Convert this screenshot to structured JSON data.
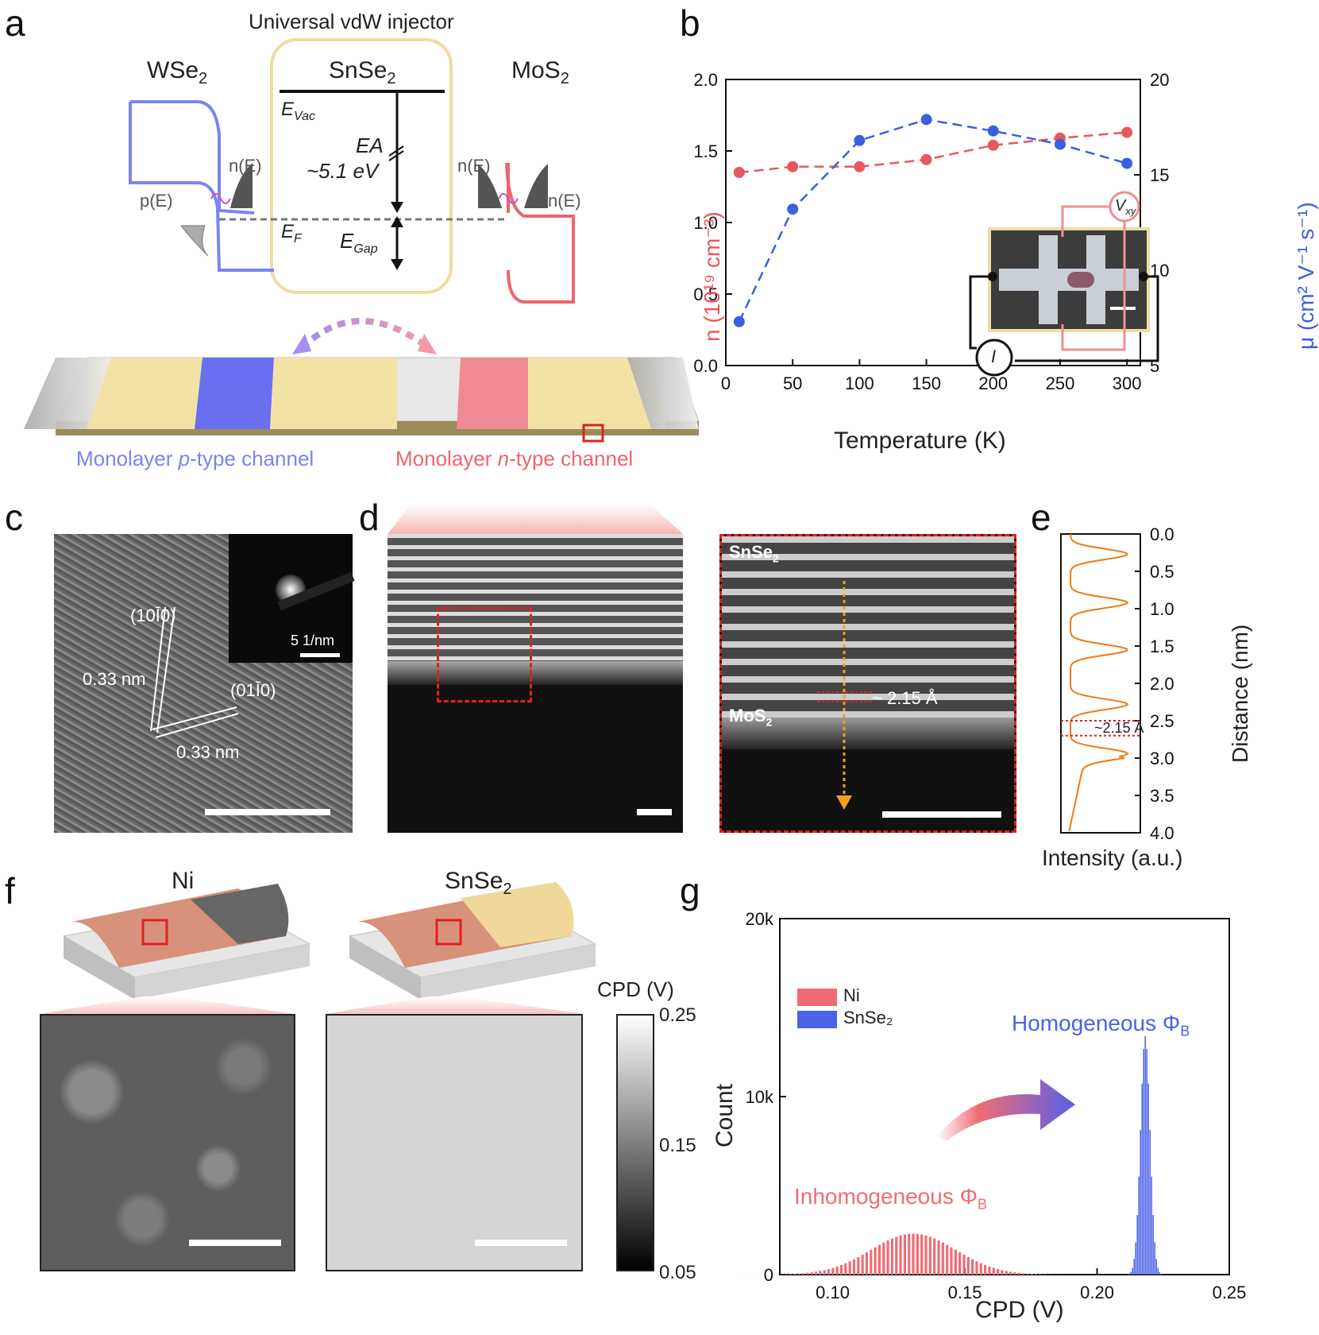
{
  "panels": {
    "a": "a",
    "b": "b",
    "c": "c",
    "d": "d",
    "e": "e",
    "f": "f",
    "g": "g"
  },
  "panel_a": {
    "title": "Universal vdW injector",
    "wse2": "WSe",
    "snse2": "SnSe",
    "mos2": "MoS",
    "sub2": "2",
    "evac": "E",
    "evac_sub": "Vac",
    "ea": "EA",
    "ea_val": "~5.1 eV",
    "ef": "E",
    "ef_sub": "F",
    "egap": "E",
    "egap_sub": "Gap",
    "nE": "n(E)",
    "pE": "p(E)",
    "p_channel_pre": "Monolayer ",
    "p_channel_it": "p",
    "p_channel_post": "-type channel",
    "n_channel_pre": "Monolayer ",
    "n_channel_it": "n",
    "n_channel_post": "-type channel",
    "colors": {
      "p": "#7b84f0",
      "n": "#f0646e",
      "gold": "#f3e2a6"
    }
  },
  "panel_c": {
    "plane1": "(10Ī0)",
    "plane2": "(01Ī0)",
    "d1": "0.33 nm",
    "d2": "0.33 nm",
    "inset_scale": "5 1/nm"
  },
  "panel_d": {
    "top": "SnSe",
    "bottom": "MoS",
    "sub2": "2",
    "spacing": "~ 2.15 Å"
  },
  "panel_e": {
    "ylabel": "Distance (nm)",
    "xlabel": "Intensity (a.u.)",
    "ticks": [
      "0.0",
      "0.5",
      "1.0",
      "1.5",
      "2.0",
      "2.5",
      "3.0",
      "3.5",
      "4.0"
    ],
    "spacing": "~2.15 Å"
  },
  "panel_f": {
    "ni": "Ni",
    "snse": "SnSe",
    "sub2": "2",
    "cbar_title": "CPD (V)",
    "cbar_ticks": [
      "0.25",
      "0.15",
      "0.05"
    ]
  },
  "chart_data": [
    {
      "type": "line",
      "panel": "b",
      "xlabel": "Temperature (K)",
      "ylabel_left": "n (10¹⁹ cm⁻³)",
      "ylabel_right": "μ (cm² V⁻¹ s⁻¹)",
      "x": [
        10,
        50,
        100,
        150,
        200,
        250,
        300
      ],
      "xticks": [
        "0",
        "50",
        "100",
        "150",
        "200",
        "250",
        "300"
      ],
      "yticks_left": [
        "0.0",
        "0.5",
        "1.0",
        "1.5",
        "2.0"
      ],
      "yticks_right": [
        "5",
        "10",
        "15",
        "20"
      ],
      "xlim": [
        0,
        310
      ],
      "ylim_left": [
        0,
        2.0
      ],
      "ylim_right": [
        5,
        20
      ],
      "series": [
        {
          "axis": "left",
          "color": "#e8585e",
          "values": [
            1.35,
            1.39,
            1.39,
            1.44,
            1.54,
            1.59,
            1.63
          ]
        },
        {
          "axis": "right",
          "color": "#3b5fe0",
          "values": [
            7.3,
            13.2,
            16.8,
            17.9,
            17.3,
            16.6,
            15.6
          ]
        }
      ],
      "inset": {
        "vxy": "V",
        "vxy_sub": "xy",
        "i": "I"
      }
    },
    {
      "type": "bar",
      "panel": "g",
      "xlabel": "CPD (V)",
      "ylabel": "Count",
      "xticks": [
        "0.10",
        "0.15",
        "0.20",
        "0.25"
      ],
      "yticks": [
        "0",
        "10k",
        "20k"
      ],
      "xlim": [
        0.08,
        0.25
      ],
      "ylim": [
        0,
        20000
      ],
      "legend": [
        "Ni",
        "SnSe₂"
      ],
      "annotation_homog": "Homogeneous Φ",
      "annotation_inhomog": "Inhomogeneous Φ",
      "annotation_sub": "B",
      "series": [
        {
          "name": "Ni",
          "color": "#f06c74",
          "center": 0.13,
          "sigma": 0.016,
          "peak": 2300
        },
        {
          "name": "SnSe₂",
          "color": "#4a62e8",
          "center": 0.218,
          "sigma": 0.0018,
          "peak": 13400
        }
      ]
    }
  ]
}
